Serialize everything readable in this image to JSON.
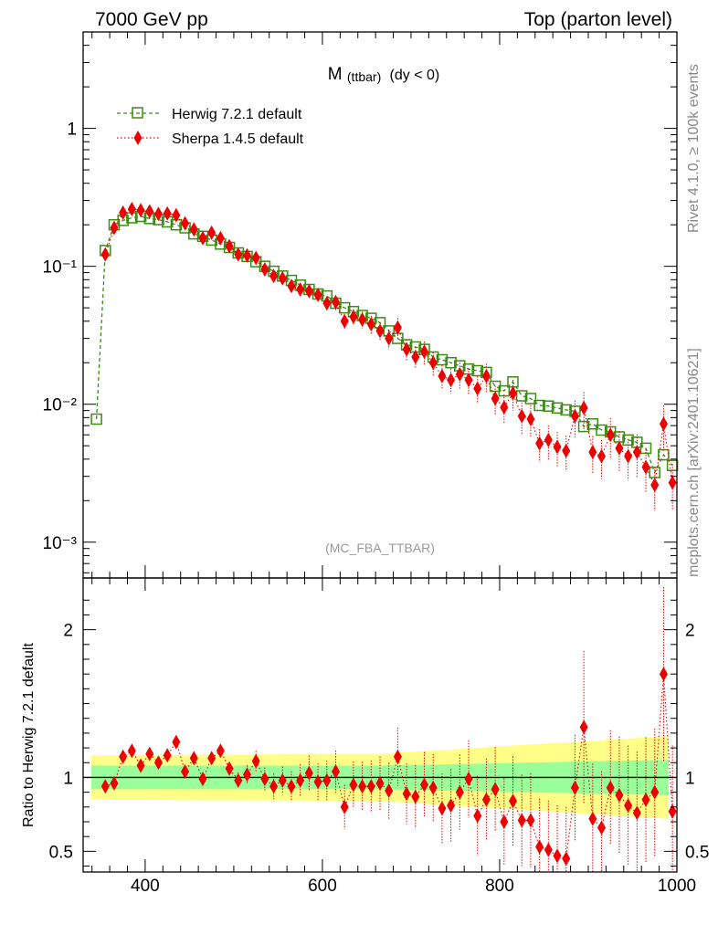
{
  "header": {
    "left": "7000 GeV pp",
    "right": "Top (parton level)"
  },
  "side_labels": {
    "rivet": "Rivet 4.1.0, ≥ 100k events",
    "mcplots": "mcplots.cern.ch [arXiv:2401.10621]"
  },
  "plot": {
    "title_main": "M",
    "title_sub": "(ttbar)",
    "title_cond": "(dy < 0)",
    "analysis": "(MC_FBA_TTBAR)"
  },
  "colors": {
    "herwig": "#3a8c14",
    "sherpa": "#ee0000",
    "band_inner": "#99ff99",
    "band_outer": "#ffff88"
  },
  "chart_data": [
    {
      "type": "line",
      "panel": "main",
      "yscale": "log",
      "xlim": [
        330,
        1000
      ],
      "ylim": [
        0.00055,
        5.0
      ],
      "ytick_labels": [
        "1",
        "10⁻¹",
        "10⁻²",
        "10⁻³"
      ],
      "x": [
        345,
        355,
        365,
        375,
        385,
        395,
        405,
        415,
        425,
        435,
        445,
        455,
        465,
        475,
        485,
        495,
        505,
        515,
        525,
        535,
        545,
        555,
        565,
        575,
        585,
        595,
        605,
        615,
        625,
        635,
        645,
        655,
        665,
        675,
        685,
        695,
        705,
        715,
        725,
        735,
        745,
        755,
        765,
        775,
        785,
        795,
        805,
        815,
        825,
        835,
        845,
        855,
        865,
        875,
        885,
        895,
        905,
        915,
        925,
        935,
        945,
        955,
        965,
        975,
        985,
        995
      ],
      "legend": [
        "Herwig 7.2.1 default",
        "Sherpa 1.4.5 default"
      ],
      "series": [
        {
          "name": "Herwig 7.2.1 default",
          "values": [
            0.0078,
            0.13,
            0.2,
            0.215,
            0.225,
            0.23,
            0.222,
            0.218,
            0.21,
            0.2,
            0.19,
            0.172,
            0.165,
            0.155,
            0.145,
            0.137,
            0.125,
            0.118,
            0.108,
            0.1,
            0.092,
            0.085,
            0.079,
            0.073,
            0.068,
            0.063,
            0.061,
            0.054,
            0.05,
            0.047,
            0.044,
            0.042,
            0.039,
            0.034,
            0.03,
            0.027,
            0.026,
            0.025,
            0.022,
            0.021,
            0.02,
            0.019,
            0.018,
            0.0175,
            0.017,
            0.0135,
            0.0125,
            0.0145,
            0.0115,
            0.011,
            0.0098,
            0.0097,
            0.0094,
            0.0091,
            0.0089,
            0.0069,
            0.0072,
            0.0065,
            0.0063,
            0.0058,
            0.0055,
            0.0053,
            0.0048,
            0.0032,
            0.0043,
            0.0036
          ]
        },
        {
          "name": "Sherpa 1.4.5 default",
          "values": [
            null,
            0.122,
            0.19,
            0.245,
            0.26,
            0.255,
            0.25,
            0.24,
            0.242,
            0.235,
            0.205,
            0.185,
            0.16,
            0.175,
            0.16,
            0.14,
            0.122,
            0.12,
            0.115,
            0.095,
            0.085,
            0.082,
            0.072,
            0.068,
            0.066,
            0.062,
            0.054,
            0.055,
            0.04,
            0.043,
            0.041,
            0.038,
            0.034,
            0.03,
            0.036,
            0.025,
            0.022,
            0.024,
            0.02,
            0.016,
            0.015,
            0.0165,
            0.015,
            0.013,
            0.016,
            0.011,
            0.0095,
            0.012,
            0.0082,
            0.0078,
            0.0052,
            0.0055,
            0.0049,
            0.0046,
            0.0082,
            0.0094,
            0.0045,
            0.0042,
            0.006,
            0.0048,
            0.0042,
            0.0045,
            0.0035,
            0.0026,
            0.0072,
            0.0027
          ]
        }
      ]
    },
    {
      "type": "line",
      "panel": "ratio",
      "ylabel": "Ratio to Herwig 7.2.1 default",
      "ylim": [
        0.36,
        2.35
      ],
      "ytick_labels": [
        "2",
        "1",
        "0.5"
      ],
      "ytick_values": [
        2,
        1,
        0.5
      ],
      "xlim": [
        330,
        1000
      ],
      "xtick_labels": [
        "400",
        "600",
        "800",
        "1000"
      ],
      "xtick_values": [
        400,
        600,
        800,
        1000
      ],
      "x": [
        355,
        365,
        375,
        385,
        395,
        405,
        415,
        425,
        435,
        445,
        455,
        465,
        475,
        485,
        495,
        505,
        515,
        525,
        535,
        545,
        555,
        565,
        575,
        585,
        595,
        605,
        615,
        625,
        635,
        645,
        655,
        665,
        675,
        685,
        695,
        705,
        715,
        725,
        735,
        745,
        755,
        765,
        775,
        785,
        795,
        805,
        815,
        825,
        835,
        845,
        855,
        865,
        875,
        885,
        895,
        905,
        915,
        925,
        935,
        945,
        955,
        965,
        975,
        985,
        995
      ],
      "series": [
        {
          "name": "Sherpa 1.4.5 default",
          "values": [
            0.94,
            0.96,
            1.14,
            1.18,
            1.08,
            1.16,
            1.1,
            1.15,
            1.24,
            1.04,
            1.13,
            0.99,
            1.13,
            1.18,
            1.06,
            0.98,
            1.02,
            1.11,
            0.99,
            0.94,
            0.98,
            0.94,
            0.98,
            1.03,
            0.97,
            0.98,
            1.04,
            0.8,
            0.95,
            0.94,
            0.94,
            0.96,
            0.91,
            1.14,
            0.89,
            0.87,
            0.95,
            0.93,
            0.79,
            0.81,
            0.9,
            0.99,
            0.74,
            0.85,
            0.92,
            0.7,
            0.84,
            0.71,
            0.71,
            0.53,
            0.51,
            0.47,
            0.45,
            0.93,
            1.34,
            0.72,
            0.66,
            0.93,
            0.88,
            0.81,
            0.76,
            0.85,
            0.9,
            1.7,
            0.77
          ]
        }
      ],
      "band_inner_halfwidth": [
        0.08,
        0.08,
        0.12
      ],
      "band_outer_halfwidth": [
        0.15,
        0.16,
        0.28
      ]
    }
  ]
}
